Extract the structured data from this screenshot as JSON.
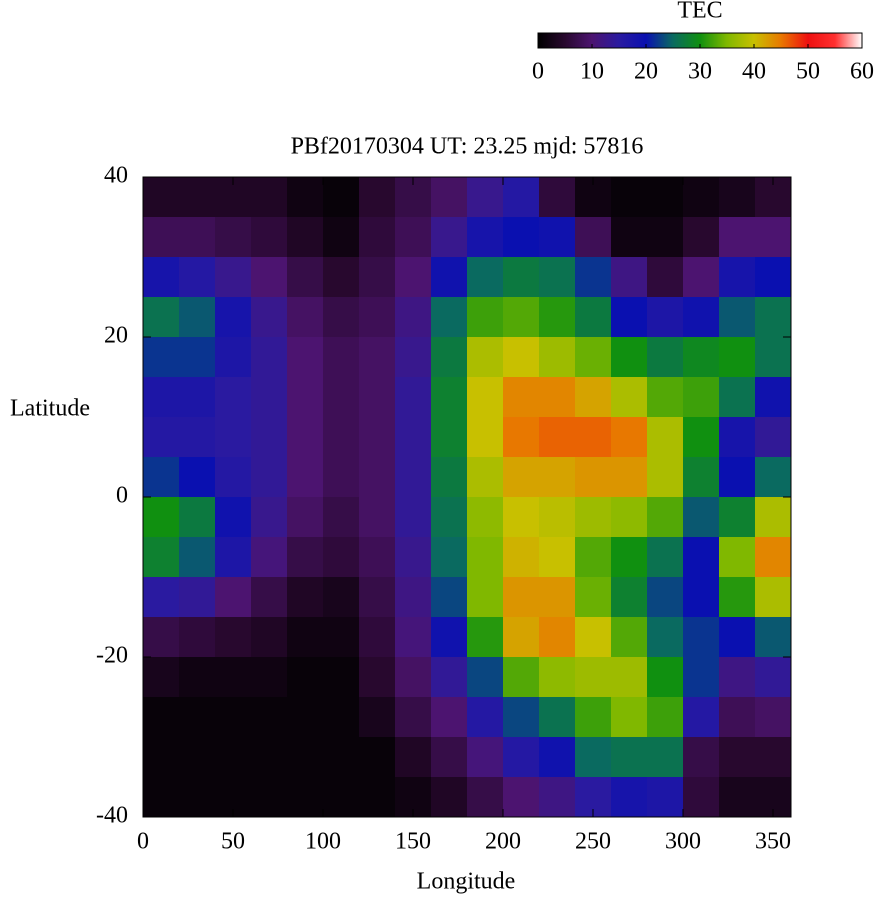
{
  "chart_data": {
    "type": "heatmap",
    "title": "PBf20170304  UT: 23.25  mjd: 57816",
    "xlabel": "Longitude",
    "ylabel": "Latitude",
    "xlim": [
      0,
      360
    ],
    "ylim": [
      -40,
      40
    ],
    "xticks": [
      0,
      50,
      100,
      150,
      200,
      250,
      300,
      350
    ],
    "yticks": [
      -40,
      -20,
      0,
      20,
      40
    ],
    "x": [
      10,
      30,
      50,
      70,
      90,
      110,
      130,
      150,
      170,
      190,
      210,
      230,
      250,
      270,
      290,
      310,
      330,
      350
    ],
    "y": [
      37.5,
      32.5,
      27.5,
      22.5,
      17.5,
      12.5,
      7.5,
      2.5,
      -2.5,
      -7.5,
      -12.5,
      -17.5,
      -22.5,
      -27.5,
      -32.5,
      -37.5
    ],
    "values": [
      [
        4,
        4,
        4,
        4,
        2,
        1,
        5,
        7,
        9,
        13,
        16,
        6,
        2,
        1,
        1,
        2,
        3,
        5
      ],
      [
        8,
        8,
        7,
        6,
        4,
        2,
        6,
        8,
        13,
        18,
        20,
        19,
        8,
        2,
        2,
        5,
        10,
        10
      ],
      [
        18,
        16,
        13,
        10,
        7,
        5,
        7,
        10,
        19,
        25,
        27,
        26,
        22,
        12,
        6,
        10,
        18,
        20
      ],
      [
        26,
        24,
        18,
        13,
        9,
        7,
        8,
        12,
        25,
        32,
        33,
        31,
        27,
        20,
        17,
        19,
        24,
        26
      ],
      [
        22,
        22,
        17,
        14,
        10,
        8,
        9,
        13,
        27,
        38,
        40,
        37,
        34,
        30,
        27,
        29,
        30,
        26
      ],
      [
        17,
        17,
        15,
        14,
        10,
        8,
        9,
        14,
        28,
        40,
        44,
        44,
        42,
        38,
        33,
        32,
        26,
        19
      ],
      [
        16,
        16,
        15,
        14,
        10,
        8,
        9,
        14,
        28,
        40,
        45,
        46,
        46,
        45,
        38,
        30,
        18,
        14
      ],
      [
        22,
        20,
        16,
        14,
        10,
        8,
        9,
        14,
        27,
        38,
        42,
        42,
        43,
        43,
        38,
        28,
        20,
        25
      ],
      [
        30,
        27,
        19,
        13,
        9,
        7,
        9,
        14,
        26,
        36,
        40,
        39,
        37,
        36,
        33,
        24,
        28,
        38
      ],
      [
        28,
        24,
        17,
        11,
        7,
        6,
        8,
        13,
        25,
        35,
        41,
        40,
        33,
        30,
        26,
        20,
        35,
        44
      ],
      [
        15,
        14,
        10,
        7,
        4,
        3,
        7,
        12,
        23,
        35,
        43,
        43,
        34,
        28,
        23,
        20,
        31,
        38
      ],
      [
        7,
        6,
        5,
        4,
        2,
        2,
        6,
        11,
        19,
        31,
        42,
        44,
        40,
        33,
        25,
        22,
        20,
        24
      ],
      [
        3,
        2,
        2,
        2,
        1,
        1,
        5,
        9,
        14,
        23,
        33,
        36,
        37,
        37,
        30,
        22,
        12,
        14
      ],
      [
        1,
        1,
        1,
        1,
        1,
        1,
        3,
        7,
        10,
        16,
        23,
        26,
        32,
        35,
        32,
        16,
        8,
        9
      ],
      [
        1,
        1,
        1,
        1,
        1,
        1,
        1,
        4,
        7,
        11,
        16,
        19,
        25,
        26,
        26,
        7,
        5,
        5
      ],
      [
        1,
        1,
        1,
        1,
        1,
        1,
        1,
        2,
        4,
        7,
        10,
        12,
        15,
        18,
        17,
        6,
        3,
        3
      ]
    ],
    "colorbar": {
      "label": "TEC",
      "lim": [
        0,
        60
      ],
      "ticks": [
        0,
        10,
        20,
        30,
        40,
        50,
        60
      ],
      "colormap": [
        "#000000",
        "#28082e",
        "#4c1470",
        "#2a1aa0",
        "#0a10b0",
        "#0a6a60",
        "#109010",
        "#80b800",
        "#c8c000",
        "#e87800",
        "#ee1010",
        "#ff3030",
        "#ffffff"
      ]
    }
  }
}
